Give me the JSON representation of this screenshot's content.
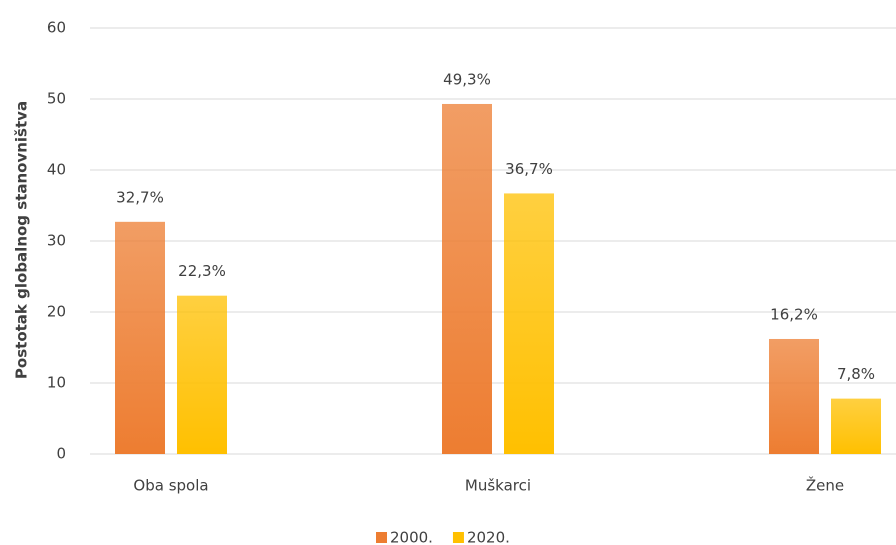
{
  "chart_data": {
    "type": "bar",
    "y_label": "Postotak globalnog stanovništva",
    "categories": [
      "Oba spola",
      "Muškarci",
      "Žene"
    ],
    "series": [
      {
        "name": "2000.",
        "color": "#ed7d31",
        "values": [
          32.7,
          49.3,
          16.2
        ],
        "value_labels": [
          "32,7%",
          "49,3%",
          "16,2%"
        ]
      },
      {
        "name": "2020.",
        "color": "#ffc000",
        "values": [
          22.3,
          36.7,
          7.8
        ],
        "value_labels": [
          "22,3%",
          "36,7%",
          "7,8%"
        ]
      }
    ],
    "ylim": [
      0,
      60
    ],
    "yticks": [
      0,
      10,
      20,
      30,
      40,
      50,
      60
    ],
    "grid": true,
    "legend": "bottom"
  }
}
